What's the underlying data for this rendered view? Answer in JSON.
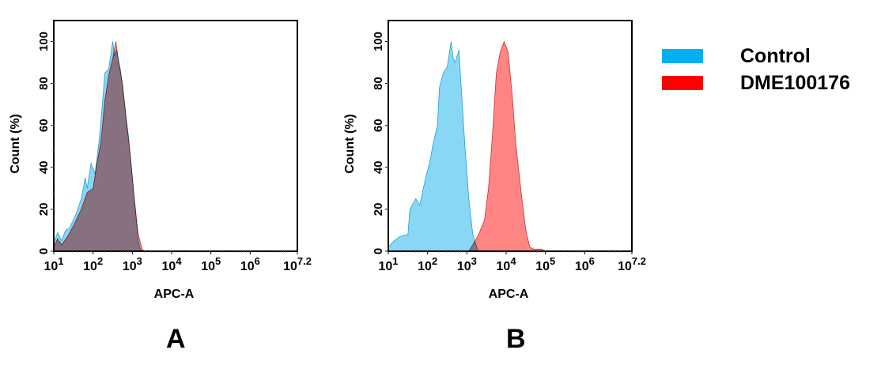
{
  "legend": {
    "items": [
      {
        "label": "Control",
        "color": "#00b0f0"
      },
      {
        "label": "DME100176",
        "color": "#ff0000"
      }
    ],
    "placement": "right"
  },
  "panels": [
    {
      "label": "A"
    },
    {
      "label": "B"
    }
  ],
  "chart_data": [
    {
      "type": "area",
      "panel": "A",
      "xlabel": "APC-A",
      "ylabel": "Count (%)",
      "xscale": "log",
      "xlim_log10": [
        1,
        7.2
      ],
      "ylim": [
        0,
        110
      ],
      "xtick_labels": [
        {
          "base": "10",
          "exp": "1"
        },
        {
          "base": "10",
          "exp": "2"
        },
        {
          "base": "10",
          "exp": "3"
        },
        {
          "base": "10",
          "exp": "4"
        },
        {
          "base": "10",
          "exp": "5"
        },
        {
          "base": "10",
          "exp": "6"
        },
        {
          "base": "10",
          "exp": "7.2"
        }
      ],
      "ytick_labels": [
        "0",
        "20",
        "40",
        "60",
        "80",
        "100"
      ],
      "series": [
        {
          "name": "Control",
          "x_log10": [
            1.0,
            1.1,
            1.2,
            1.3,
            1.4,
            1.55,
            1.7,
            1.8,
            1.85,
            1.95,
            2.05,
            2.15,
            2.2,
            2.3,
            2.4,
            2.5,
            2.55,
            2.6,
            2.7,
            2.8,
            2.9,
            3.0,
            3.1,
            3.15,
            3.2,
            3.25
          ],
          "y": [
            4,
            9,
            5,
            10,
            11,
            17,
            25,
            35,
            30,
            42,
            37,
            52,
            62,
            85,
            87,
            100,
            93,
            96,
            86,
            70,
            55,
            35,
            15,
            5,
            1,
            0
          ]
        },
        {
          "name": "DME100176",
          "x_log10": [
            1.0,
            1.1,
            1.2,
            1.35,
            1.5,
            1.7,
            1.85,
            2.0,
            2.1,
            2.2,
            2.3,
            2.4,
            2.5,
            2.58,
            2.65,
            2.75,
            2.85,
            2.95,
            3.05,
            3.15,
            3.25,
            3.3
          ],
          "y": [
            2,
            6,
            3,
            7,
            12,
            20,
            28,
            30,
            42,
            52,
            72,
            84,
            92,
            100,
            90,
            80,
            62,
            45,
            25,
            8,
            1,
            0
          ]
        }
      ]
    },
    {
      "type": "area",
      "panel": "B",
      "xlabel": "APC-A",
      "ylabel": "Count (%)",
      "xscale": "log",
      "xlim_log10": [
        1,
        7.2
      ],
      "ylim": [
        0,
        110
      ],
      "xtick_labels": [
        {
          "base": "10",
          "exp": "1"
        },
        {
          "base": "10",
          "exp": "2"
        },
        {
          "base": "10",
          "exp": "3"
        },
        {
          "base": "10",
          "exp": "4"
        },
        {
          "base": "10",
          "exp": "5"
        },
        {
          "base": "10",
          "exp": "6"
        },
        {
          "base": "10",
          "exp": "7.2"
        }
      ],
      "ytick_labels": [
        "0",
        "20",
        "40",
        "60",
        "80",
        "100"
      ],
      "series": [
        {
          "name": "Control",
          "x_log10": [
            1.0,
            1.15,
            1.3,
            1.5,
            1.55,
            1.7,
            1.8,
            1.95,
            2.05,
            2.15,
            2.25,
            2.3,
            2.4,
            2.5,
            2.6,
            2.65,
            2.7,
            2.8,
            2.85,
            2.95,
            3.05,
            3.15,
            3.25,
            3.3
          ],
          "y": [
            2,
            5,
            7,
            8,
            20,
            25,
            22,
            35,
            42,
            52,
            60,
            78,
            85,
            88,
            100,
            92,
            90,
            96,
            80,
            50,
            25,
            8,
            2,
            0
          ]
        },
        {
          "name": "DME100176",
          "x_log10": [
            3.05,
            3.15,
            3.3,
            3.45,
            3.55,
            3.65,
            3.75,
            3.85,
            3.95,
            4.05,
            4.15,
            4.25,
            4.4,
            4.5,
            4.6,
            4.7,
            4.9,
            5.0
          ],
          "y": [
            0,
            3,
            8,
            15,
            30,
            55,
            85,
            95,
            100,
            95,
            75,
            50,
            25,
            10,
            2,
            1,
            1,
            0
          ]
        }
      ]
    }
  ]
}
